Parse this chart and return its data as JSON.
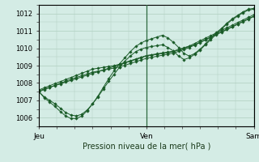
{
  "bg_color": "#d4ece5",
  "grid_color": "#b0cfbf",
  "line_color": "#1a5c28",
  "marker_color": "#1a5c28",
  "title": "Pression niveau de la mer( hPa )",
  "ylim": [
    1005.5,
    1012.5
  ],
  "yticks": [
    1006,
    1007,
    1008,
    1009,
    1010,
    1011,
    1012
  ],
  "xtick_pos": [
    0,
    0.5,
    1.0
  ],
  "xlabel_labels": [
    "Jeu",
    "Ven",
    "Sam"
  ],
  "vline_positions": [
    0.5,
    1.0
  ],
  "series_curved": [
    [
      1007.5,
      1007.2,
      1007.0,
      1006.8,
      1006.55,
      1006.3,
      1006.15,
      1006.1,
      1006.2,
      1006.45,
      1006.8,
      1007.2,
      1007.65,
      1008.1,
      1008.5,
      1008.9,
      1009.25,
      1009.55,
      1009.8,
      1009.95,
      1010.05,
      1010.1,
      1010.15,
      1010.2,
      1010.05,
      1009.85,
      1009.55,
      1009.35,
      1009.45,
      1009.65,
      1009.9,
      1010.2,
      1010.5,
      1010.8,
      1011.1,
      1011.4,
      1011.65,
      1011.85,
      1012.05,
      1012.2,
      1012.25
    ],
    [
      1007.5,
      1007.15,
      1006.9,
      1006.65,
      1006.35,
      1006.1,
      1005.95,
      1005.95,
      1006.1,
      1006.4,
      1006.8,
      1007.25,
      1007.75,
      1008.25,
      1008.7,
      1009.1,
      1009.45,
      1009.8,
      1010.1,
      1010.3,
      1010.45,
      1010.55,
      1010.65,
      1010.75,
      1010.6,
      1010.35,
      1010.05,
      1009.7,
      1009.55,
      1009.7,
      1009.95,
      1010.25,
      1010.6,
      1010.9,
      1011.15,
      1011.45,
      1011.7,
      1011.9,
      1012.1,
      1012.25,
      1012.3
    ]
  ],
  "series_straight": [
    [
      1007.55,
      1007.65,
      1007.75,
      1007.85,
      1007.95,
      1008.05,
      1008.15,
      1008.25,
      1008.35,
      1008.45,
      1008.55,
      1008.65,
      1008.75,
      1008.85,
      1008.95,
      1009.05,
      1009.15,
      1009.25,
      1009.35,
      1009.45,
      1009.55,
      1009.6,
      1009.65,
      1009.7,
      1009.75,
      1009.8,
      1009.9,
      1010.0,
      1010.1,
      1010.2,
      1010.35,
      1010.5,
      1010.65,
      1010.8,
      1010.95,
      1011.1,
      1011.25,
      1011.4,
      1011.55,
      1011.7,
      1011.85
    ],
    [
      1007.6,
      1007.72,
      1007.84,
      1007.96,
      1008.08,
      1008.2,
      1008.32,
      1008.44,
      1008.56,
      1008.68,
      1008.8,
      1008.85,
      1008.9,
      1008.95,
      1009.0,
      1009.08,
      1009.18,
      1009.28,
      1009.38,
      1009.48,
      1009.58,
      1009.63,
      1009.68,
      1009.73,
      1009.78,
      1009.83,
      1009.93,
      1010.03,
      1010.13,
      1010.28,
      1010.43,
      1010.58,
      1010.73,
      1010.88,
      1011.03,
      1011.18,
      1011.33,
      1011.48,
      1011.63,
      1011.78,
      1011.93
    ],
    [
      1007.5,
      1007.62,
      1007.74,
      1007.86,
      1007.98,
      1008.1,
      1008.22,
      1008.32,
      1008.42,
      1008.52,
      1008.62,
      1008.68,
      1008.74,
      1008.8,
      1008.86,
      1008.93,
      1009.02,
      1009.12,
      1009.22,
      1009.32,
      1009.42,
      1009.48,
      1009.54,
      1009.6,
      1009.66,
      1009.72,
      1009.82,
      1009.93,
      1010.05,
      1010.18,
      1010.33,
      1010.48,
      1010.63,
      1010.78,
      1010.93,
      1011.08,
      1011.23,
      1011.38,
      1011.53,
      1011.68,
      1011.83
    ]
  ]
}
